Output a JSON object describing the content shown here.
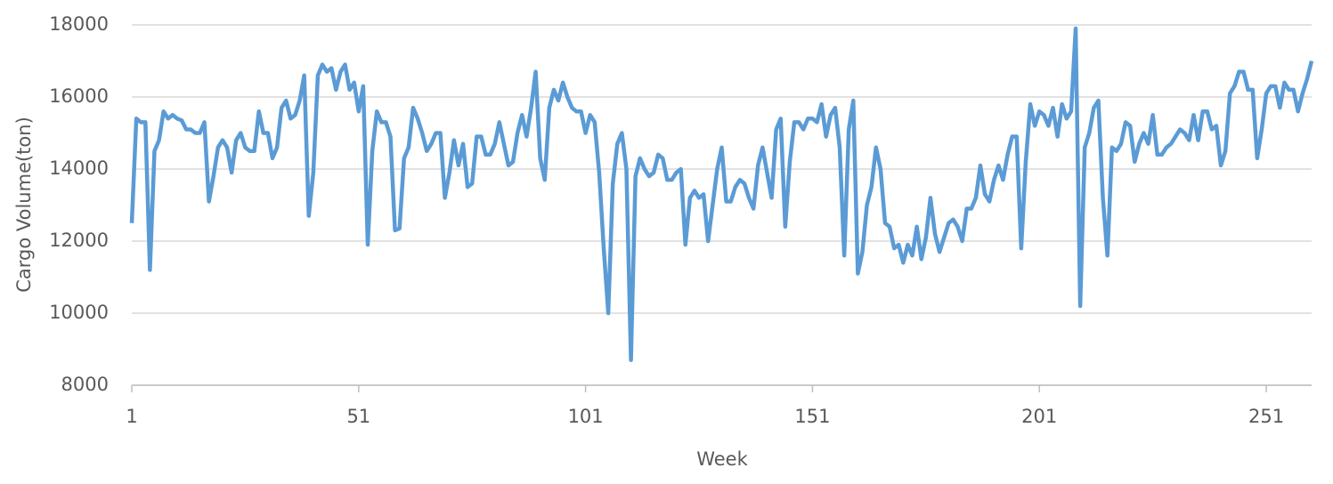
{
  "chart_data": {
    "type": "line",
    "x_label": "Week",
    "y_label": "Cargo Volume(ton)",
    "x": [
      1,
      2,
      3,
      4,
      5,
      6,
      7,
      8,
      9,
      10,
      11,
      12,
      13,
      14,
      15,
      16,
      17,
      18,
      19,
      20,
      21,
      22,
      23,
      24,
      25,
      26,
      27,
      28,
      29,
      30,
      31,
      32,
      33,
      34,
      35,
      36,
      37,
      38,
      39,
      40,
      41,
      42,
      43,
      44,
      45,
      46,
      47,
      48,
      49,
      50,
      51,
      52,
      53,
      54,
      55,
      56,
      57,
      58,
      59,
      60,
      61,
      62,
      63,
      64,
      65,
      66,
      67,
      68,
      69,
      70,
      71,
      72,
      73,
      74,
      75,
      76,
      77,
      78,
      79,
      80,
      81,
      82,
      83,
      84,
      85,
      86,
      87,
      88,
      89,
      90,
      91,
      92,
      93,
      94,
      95,
      96,
      97,
      98,
      99,
      100,
      101,
      102,
      103,
      104,
      105,
      106,
      107,
      108,
      109,
      110,
      111,
      112,
      113,
      114,
      115,
      116,
      117,
      118,
      119,
      120,
      121,
      122,
      123,
      124,
      125,
      126,
      127,
      128,
      129,
      130,
      131,
      132,
      133,
      134,
      135,
      136,
      137,
      138,
      139,
      140,
      141,
      142,
      143,
      144,
      145,
      146,
      147,
      148,
      149,
      150,
      151,
      152,
      153,
      154,
      155,
      156,
      157,
      158,
      159,
      160,
      161,
      162,
      163,
      164,
      165,
      166,
      167,
      168,
      169,
      170,
      171,
      172,
      173,
      174,
      175,
      176,
      177,
      178,
      179,
      180,
      181,
      182,
      183,
      184,
      185,
      186,
      187,
      188,
      189,
      190,
      191,
      192,
      193,
      194,
      195,
      196,
      197,
      198,
      199,
      200,
      201,
      202,
      203,
      204,
      205,
      206,
      207,
      208,
      209,
      210,
      211,
      212,
      213,
      214,
      215,
      216,
      217,
      218,
      219,
      220,
      221,
      222,
      223,
      224,
      225,
      226,
      227,
      228,
      229,
      230,
      231,
      232,
      233,
      234,
      235,
      236,
      237,
      238,
      239,
      240,
      241,
      242,
      243,
      244,
      245,
      246,
      247,
      248,
      249,
      250,
      251,
      252,
      253,
      254,
      255,
      256,
      257,
      258,
      259,
      260,
      261
    ],
    "values": [
      12500,
      15400,
      15300,
      15300,
      11200,
      14500,
      14800,
      15600,
      15400,
      15500,
      15400,
      15350,
      15100,
      15100,
      15000,
      15000,
      15300,
      13100,
      13800,
      14600,
      14800,
      14600,
      13900,
      14800,
      15000,
      14600,
      14500,
      14500,
      15600,
      15000,
      15000,
      14300,
      14600,
      15700,
      15900,
      15400,
      15500,
      15900,
      16600,
      12700,
      13900,
      16600,
      16900,
      16700,
      16800,
      16200,
      16700,
      16900,
      16200,
      16400,
      15600,
      16300,
      11900,
      14500,
      15600,
      15300,
      15300,
      14900,
      12300,
      12350,
      14300,
      14600,
      15700,
      15400,
      15000,
      14500,
      14700,
      15000,
      15000,
      13200,
      13900,
      14800,
      14100,
      14700,
      13500,
      13600,
      14900,
      14900,
      14400,
      14400,
      14700,
      15300,
      14700,
      14100,
      14200,
      15000,
      15500,
      14900,
      15700,
      16700,
      14300,
      13700,
      15700,
      16200,
      15900,
      16400,
      16000,
      15700,
      15600,
      15600,
      15000,
      15500,
      15300,
      13900,
      11800,
      10000,
      13600,
      14700,
      15000,
      14000,
      8700,
      13800,
      14300,
      14000,
      13800,
      13900,
      14400,
      14300,
      13700,
      13700,
      13900,
      14000,
      11900,
      13200,
      13400,
      13200,
      13300,
      12000,
      13000,
      14000,
      14600,
      13100,
      13100,
      13500,
      13700,
      13600,
      13200,
      12900,
      14100,
      14600,
      13900,
      13200,
      15100,
      15400,
      12400,
      14200,
      15300,
      15300,
      15100,
      15400,
      15400,
      15300,
      15800,
      14900,
      15500,
      15700,
      14600,
      11600,
      15100,
      15900,
      11100,
      11700,
      13000,
      13500,
      14600,
      14000,
      12500,
      12400,
      11800,
      11900,
      11400,
      11900,
      11600,
      12400,
      11500,
      12100,
      13200,
      12200,
      11700,
      12100,
      12500,
      12600,
      12400,
      12000,
      12900,
      12900,
      13200,
      14100,
      13300,
      13100,
      13700,
      14100,
      13700,
      14400,
      14900,
      14900,
      11800,
      14200,
      15800,
      15200,
      15600,
      15500,
      15200,
      15700,
      14900,
      15800,
      15400,
      15600,
      17900,
      10200,
      14600,
      15000,
      15700,
      15900,
      13200,
      11600,
      14600,
      14500,
      14700,
      15300,
      15200,
      14200,
      14700,
      15000,
      14700,
      15500,
      14400,
      14400,
      14600,
      14700,
      14900,
      15100,
      15000,
      14800,
      15500,
      14800,
      15600,
      15600,
      15100,
      15200,
      14100,
      14500,
      16100,
      16300,
      16700,
      16700,
      16200,
      16200,
      14300,
      15100,
      16100,
      16300,
      16300,
      15700,
      16400,
      16200,
      16200,
      15600,
      16100,
      16500,
      17000
    ],
    "color": "#5b9bd5",
    "xlim": [
      1,
      261
    ],
    "xticks": [
      1,
      51,
      101,
      151,
      201,
      251
    ],
    "ylim": [
      8000,
      18000
    ],
    "yticks": [
      8000,
      10000,
      12000,
      14000,
      16000,
      18000
    ],
    "grid": true
  }
}
